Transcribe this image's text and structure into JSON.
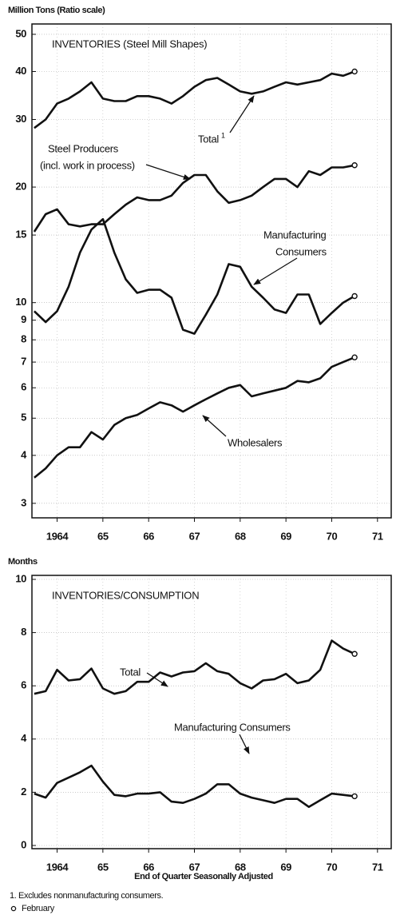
{
  "chart_data": [
    {
      "type": "line",
      "title": "INVENTORIES (Steel Mill Shapes)",
      "ylabel": "Million Tons  (Ratio scale)",
      "log": true,
      "grid": true,
      "x": [
        1964,
        1964.25,
        1964.5,
        1964.75,
        1965,
        1965.25,
        1965.5,
        1965.75,
        1966,
        1966.25,
        1966.5,
        1966.75,
        1967,
        1967.25,
        1967.5,
        1967.75,
        1968,
        1968.25,
        1968.5,
        1968.75,
        1969,
        1969.25,
        1969.5,
        1969.75,
        1970,
        1970.25,
        1970.5,
        1970.75,
        1971
      ],
      "xlim": [
        1963.95,
        1971.8
      ],
      "xticks": [
        {
          "value": 1964.5,
          "label": "1964"
        },
        {
          "value": 1965.5,
          "label": "65"
        },
        {
          "value": 1966.5,
          "label": "66"
        },
        {
          "value": 1967.5,
          "label": "67"
        },
        {
          "value": 1968.5,
          "label": "68"
        },
        {
          "value": 1969.5,
          "label": "69"
        },
        {
          "value": 1970.5,
          "label": "70"
        },
        {
          "value": 1971.5,
          "label": "71"
        }
      ],
      "ylim": [
        2.75,
        53.2
      ],
      "yticks": [
        3,
        4,
        5,
        6,
        7,
        8,
        9,
        10,
        15,
        20,
        30,
        40,
        50
      ],
      "series": [
        {
          "color": "#111111",
          "values": [
            28.5,
            30,
            33,
            34,
            35.5,
            37.5,
            34,
            33.5,
            33.5,
            34.5,
            34.5,
            34,
            33,
            34.5,
            36.5,
            38,
            38.5,
            37,
            35.5,
            35,
            35.5,
            36.5,
            37.5,
            37,
            37.5,
            38,
            39.5,
            39,
            40
          ]
        },
        {
          "color": "#111111",
          "values": [
            15.3,
            17,
            17.5,
            16,
            15.8,
            16,
            16,
            17,
            18,
            18.8,
            18.5,
            18.5,
            19,
            20.5,
            21.5,
            21.5,
            19.5,
            18.2,
            18.5,
            19,
            20,
            21,
            21,
            20,
            22,
            21.5,
            22.5,
            22.5,
            22.8
          ]
        },
        {
          "color": "#111111",
          "values": [
            9.5,
            8.9,
            9.5,
            11,
            13.5,
            15.5,
            16.5,
            13.5,
            11.5,
            10.6,
            10.8,
            10.8,
            10.3,
            8.5,
            8.3,
            9.3,
            10.5,
            12.6,
            12.4,
            11,
            10.3,
            9.6,
            9.4,
            10.5,
            10.5,
            8.8,
            9.4,
            10,
            10.4
          ]
        },
        {
          "color": "#111111",
          "values": [
            3.5,
            3.7,
            4.0,
            4.2,
            4.2,
            4.6,
            4.4,
            4.8,
            5.0,
            5.1,
            5.3,
            5.5,
            5.4,
            5.2,
            5.4,
            5.6,
            5.8,
            6.0,
            6.1,
            5.7,
            5.8,
            5.9,
            6.0,
            6.25,
            6.2,
            6.35,
            6.8,
            7.0,
            7.2
          ]
        }
      ],
      "annotations": [
        {
          "lines": [
            "Total"
          ],
          "sup": "1"
        },
        {
          "lines": [
            "Steel Producers",
            "(incl. work in process)"
          ]
        },
        {
          "lines": [
            "Manufacturing",
            "Consumers"
          ]
        },
        {
          "lines": [
            "Wholesalers"
          ]
        }
      ]
    },
    {
      "type": "line",
      "title": "INVENTORIES/CONSUMPTION",
      "ylabel": "Months",
      "xlabel": "End of Quarter Seasonally Adjusted",
      "grid": true,
      "x": [
        1964,
        1964.25,
        1964.5,
        1964.75,
        1965,
        1965.25,
        1965.5,
        1965.75,
        1966,
        1966.25,
        1966.5,
        1966.75,
        1967,
        1967.25,
        1967.5,
        1967.75,
        1968,
        1968.25,
        1968.5,
        1968.75,
        1969,
        1969.25,
        1969.5,
        1969.75,
        1970,
        1970.25,
        1970.5,
        1970.75,
        1971
      ],
      "xlim": [
        1963.95,
        1971.8
      ],
      "xticks": [
        {
          "value": 1964.5,
          "label": "1964"
        },
        {
          "value": 1965.5,
          "label": "65"
        },
        {
          "value": 1966.5,
          "label": "66"
        },
        {
          "value": 1967.5,
          "label": "67"
        },
        {
          "value": 1968.5,
          "label": "68"
        },
        {
          "value": 1969.5,
          "label": "69"
        },
        {
          "value": 1970.5,
          "label": "70"
        },
        {
          "value": 1971.5,
          "label": "71"
        }
      ],
      "ylim": [
        -0.12,
        10.15
      ],
      "yticks": [
        0,
        2,
        4,
        6,
        8,
        10
      ],
      "series": [
        {
          "color": "#111111",
          "values": [
            5.7,
            5.8,
            6.6,
            6.2,
            6.25,
            6.65,
            5.9,
            5.7,
            5.8,
            6.15,
            6.15,
            6.5,
            6.35,
            6.5,
            6.55,
            6.85,
            6.55,
            6.45,
            6.1,
            5.9,
            6.2,
            6.25,
            6.45,
            6.1,
            6.2,
            6.6,
            7.7,
            7.4,
            7.2
          ]
        },
        {
          "color": "#111111",
          "values": [
            1.95,
            1.8,
            2.35,
            2.55,
            2.75,
            3.0,
            2.4,
            1.9,
            1.85,
            1.95,
            1.95,
            2.0,
            1.65,
            1.6,
            1.75,
            1.95,
            2.3,
            2.3,
            1.95,
            1.8,
            1.7,
            1.6,
            1.75,
            1.75,
            1.45,
            1.7,
            1.95,
            1.9,
            1.85
          ]
        }
      ],
      "annotations": [
        {
          "lines": [
            "Total"
          ]
        },
        {
          "lines": [
            "Manufacturing Consumers"
          ]
        }
      ]
    }
  ],
  "notes": [
    "1.  Excludes nonmanufacturing consumers.",
    "February"
  ]
}
